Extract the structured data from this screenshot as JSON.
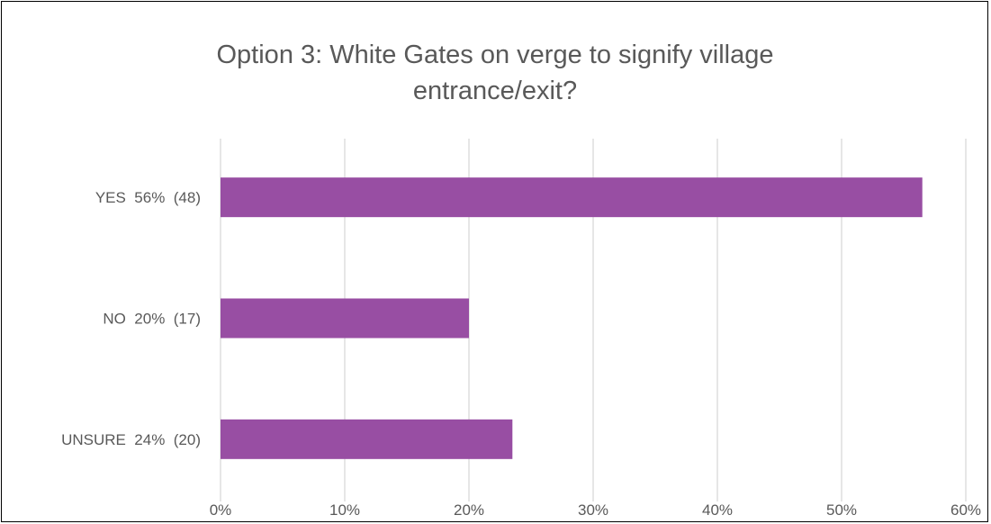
{
  "chart_data": {
    "type": "bar",
    "orientation": "horizontal",
    "title": "Option 3:  White Gates on verge to signify village entrance/exit?",
    "title_lines": [
      "Option 3:  White Gates on verge to signify village",
      "entrance/exit?"
    ],
    "categories": [
      "YES  56%  (48)",
      "NO  20%  (17)",
      "UNSURE  24%  (20)"
    ],
    "values": [
      56.5,
      20.0,
      23.5
    ],
    "xlabel": "",
    "ylabel": "",
    "xlim": [
      0,
      60
    ],
    "xticks": [
      0,
      10,
      20,
      30,
      40,
      50,
      60
    ],
    "xtick_labels": [
      "0%",
      "10%",
      "20%",
      "30%",
      "40%",
      "50%",
      "60%"
    ],
    "grid": true,
    "legend": "none",
    "colors": {
      "bar": "#984ea3",
      "gridline": "#d9d9d9",
      "text": "#595959"
    }
  }
}
